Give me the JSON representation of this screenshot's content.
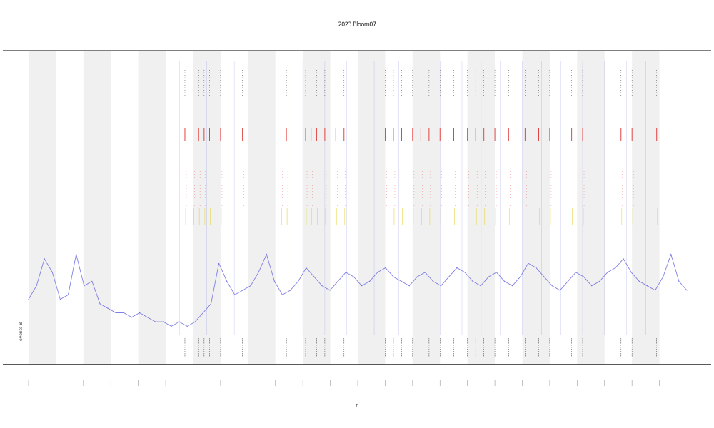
{
  "chart_data": {
    "type": "line",
    "title": "2023 Bloom07",
    "xlabel": "t",
    "inset_label": "events B",
    "xlim": [
      0,
      24
    ],
    "ylim": [
      0,
      100
    ],
    "grid": false,
    "shaded_band_starts": [
      0,
      2,
      4,
      6,
      8,
      10,
      12,
      14,
      16,
      18,
      20,
      22
    ],
    "colors": {
      "trace": "#6a6ae0",
      "shading": "#f0f0f0",
      "event_red": "#e03030",
      "event_yellow": "#e6d23c",
      "event_black": "#333333",
      "axis": "#555555"
    },
    "series": [
      {
        "values": [
          8,
          11,
          17,
          14,
          8,
          9,
          18,
          11,
          12,
          7,
          6,
          5,
          5,
          4,
          5,
          4,
          3,
          3,
          2,
          3,
          2,
          3,
          5,
          7,
          16,
          12,
          9,
          10,
          11,
          14,
          18,
          12,
          9,
          10,
          12,
          15,
          13,
          11,
          10,
          12,
          14,
          13,
          11,
          12,
          14,
          15,
          13,
          12,
          11,
          13,
          14,
          12,
          11,
          13,
          15,
          14,
          12,
          11,
          13,
          14,
          12,
          11,
          13,
          16,
          15,
          13,
          11,
          10,
          12,
          14,
          13,
          11,
          12,
          14,
          15,
          17,
          14,
          12,
          11,
          10,
          13,
          18,
          12,
          10
        ]
      }
    ],
    "event_rows": {
      "red": [
        5.7,
        6.0,
        6.2,
        6.4,
        6.6,
        7.0,
        7.8,
        9.2,
        9.4,
        10.1,
        10.3,
        10.5,
        10.8,
        11.2,
        11.5,
        13.0,
        13.3,
        13.6,
        14.0,
        14.3,
        14.6,
        15.0,
        15.5,
        16.0,
        16.3,
        16.6,
        17.0,
        17.5,
        18.1,
        18.6,
        19.0,
        19.8,
        20.2,
        21.6,
        22.0,
        22.9
      ],
      "black_top": [
        5.7,
        6.0,
        6.2,
        6.4,
        6.6,
        7.0,
        7.8,
        9.2,
        9.4,
        10.1,
        10.3,
        10.5,
        10.8,
        11.2,
        11.5,
        13.0,
        13.3,
        13.6,
        14.0,
        14.3,
        14.6,
        15.0,
        15.5,
        16.0,
        16.3,
        16.6,
        17.0,
        17.5,
        18.1,
        18.6,
        19.0,
        19.8,
        20.2,
        21.6,
        22.0,
        22.9
      ],
      "black_bottom": [
        5.7,
        6.0,
        6.2,
        6.4,
        6.6,
        7.0,
        7.8,
        9.2,
        9.4,
        10.1,
        10.3,
        10.5,
        10.8,
        11.2,
        11.5,
        13.0,
        13.3,
        13.6,
        14.0,
        14.3,
        14.6,
        15.0,
        15.5,
        16.0,
        16.3,
        16.6,
        17.0,
        17.5,
        18.1,
        18.6,
        19.0,
        19.8,
        20.2,
        21.6,
        22.0,
        22.9
      ]
    },
    "spike_markers": [
      5.5,
      6.5,
      7.5,
      9.2,
      10.0,
      10.8,
      11.6,
      12.6,
      13.5,
      14.2,
      15.0,
      15.8,
      16.5,
      17.2,
      18.0,
      18.7,
      19.4,
      20.2,
      21.0,
      21.8,
      22.5
    ]
  }
}
